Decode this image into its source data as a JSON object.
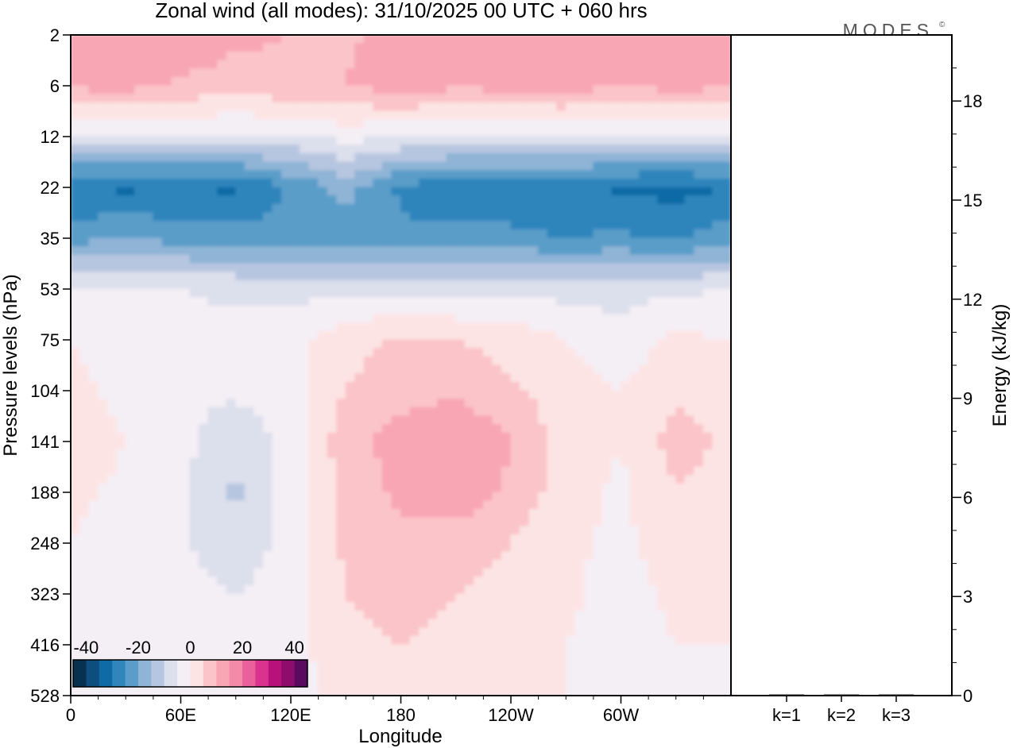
{
  "chart_data": [
    {
      "type": "heatmap",
      "title": "Zonal wind (all modes):  31/10/2025  00 UTC  + 060 hrs",
      "watermark": "MODES",
      "watermark_mark": "©",
      "xlabel": "Longitude",
      "ylabel": "Pressure levels (hPa)",
      "x_ticks": [
        "0",
        "60E",
        "120E",
        "180",
        "120W",
        "60W"
      ],
      "x_tick_lon": [
        0,
        60,
        120,
        180,
        240,
        300
      ],
      "xlim": [
        0,
        360
      ],
      "y_ticks": [
        "2",
        "6",
        "12",
        "22",
        "35",
        "53",
        "75",
        "104",
        "141",
        "188",
        "248",
        "323",
        "416",
        "528"
      ],
      "colorbar": {
        "tick_labels": [
          "-40",
          "-20",
          "0",
          "20",
          "40"
        ],
        "tick_values": [
          -40,
          -20,
          0,
          20,
          40
        ],
        "range": [
          -45,
          45
        ],
        "colors": [
          "#08304f",
          "#0c4f7e",
          "#0f6aa6",
          "#2f85bc",
          "#5a9dc9",
          "#8fb4d6",
          "#b7c6e0",
          "#dcdfec",
          "#f4eef5",
          "#fde4e4",
          "#fbc4c8",
          "#f8a6b4",
          "#f28aa8",
          "#e9609c",
          "#d9338f",
          "#b8127a",
          "#8d0c6c",
          "#5a0b5f"
        ]
      },
      "level_rows": [
        {
          "level": "2",
          "lon": [
            0,
            30,
            60,
            90,
            120,
            150,
            180,
            210,
            240,
            270,
            300,
            330,
            360
          ],
          "u": [
            12,
            15,
            14,
            11,
            10,
            9,
            12,
            10,
            13,
            12,
            11,
            14,
            12
          ]
        },
        {
          "level": "6",
          "lon": [
            0,
            30,
            60,
            90,
            120,
            150,
            180,
            210,
            240,
            270,
            300,
            330,
            360
          ],
          "u": [
            11,
            12,
            9,
            8,
            9,
            10,
            13,
            11,
            12,
            13,
            10,
            12,
            11
          ]
        },
        {
          "level": "12",
          "lon": [
            0,
            30,
            60,
            90,
            120,
            150,
            180,
            210,
            240,
            270,
            300,
            330,
            360
          ],
          "u": [
            -6,
            -5,
            -6,
            -6,
            -6,
            -3,
            -5,
            -6,
            -6,
            -6,
            -6,
            -6,
            -6
          ]
        },
        {
          "level": "22",
          "lon": [
            0,
            30,
            60,
            90,
            120,
            150,
            180,
            210,
            240,
            270,
            300,
            330,
            360
          ],
          "u": [
            -30,
            -31,
            -30,
            -31,
            -24,
            -18,
            -26,
            -28,
            -28,
            -29,
            -31,
            -32,
            -30
          ]
        },
        {
          "level": "35",
          "lon": [
            0,
            30,
            60,
            90,
            120,
            150,
            180,
            210,
            240,
            270,
            300,
            330,
            360
          ],
          "u": [
            -22,
            -20,
            -22,
            -22,
            -24,
            -22,
            -24,
            -24,
            -24,
            -25,
            -24,
            -26,
            -22
          ]
        },
        {
          "level": "53",
          "lon": [
            0,
            30,
            60,
            90,
            120,
            150,
            180,
            210,
            240,
            270,
            300,
            330,
            360
          ],
          "u": [
            -5,
            -5,
            -5,
            -6,
            -7,
            -6,
            -7,
            -7,
            -6,
            -7,
            -7,
            -6,
            -5
          ]
        },
        {
          "level": "75",
          "lon": [
            0,
            30,
            60,
            90,
            120,
            150,
            180,
            210,
            240,
            270,
            300,
            330,
            360
          ],
          "u": [
            0,
            -3,
            -4,
            -3,
            -2,
            3,
            6,
            5,
            3,
            0,
            -3,
            1,
            0
          ]
        },
        {
          "level": "104",
          "lon": [
            0,
            30,
            60,
            90,
            120,
            150,
            180,
            210,
            240,
            270,
            300,
            330,
            360
          ],
          "u": [
            2,
            -2,
            -4,
            -4,
            -2,
            5,
            8,
            9,
            6,
            2,
            0,
            4,
            3
          ]
        },
        {
          "level": "141",
          "lon": [
            0,
            30,
            60,
            90,
            120,
            150,
            180,
            210,
            240,
            270,
            300,
            330,
            360
          ],
          "u": [
            3,
            0,
            -3,
            -9,
            -3,
            8,
            12,
            15,
            10,
            3,
            0,
            7,
            4
          ]
        },
        {
          "level": "188",
          "lon": [
            0,
            30,
            60,
            90,
            120,
            150,
            180,
            210,
            240,
            270,
            300,
            330,
            360
          ],
          "u": [
            1,
            -1,
            -4,
            -11,
            -3,
            7,
            11,
            14,
            9,
            2,
            -1,
            5,
            3
          ]
        },
        {
          "level": "248",
          "lon": [
            0,
            30,
            60,
            90,
            120,
            150,
            180,
            210,
            240,
            270,
            300,
            330,
            360
          ],
          "u": [
            0,
            -2,
            -4,
            -9,
            -3,
            6,
            9,
            7,
            5,
            1,
            -1,
            2,
            1
          ]
        },
        {
          "level": "323",
          "lon": [
            0,
            30,
            60,
            90,
            120,
            150,
            180,
            210,
            240,
            270,
            300,
            330,
            360
          ],
          "u": [
            0,
            -2,
            -3,
            -5,
            -2,
            5,
            8,
            5,
            3,
            1,
            -2,
            1,
            0
          ]
        },
        {
          "level": "416",
          "lon": [
            0,
            30,
            60,
            90,
            120,
            150,
            180,
            210,
            240,
            270,
            300,
            330,
            360
          ],
          "u": [
            0,
            -1,
            -2,
            -3,
            -2,
            3,
            5,
            3,
            2,
            0,
            -2,
            0,
            0
          ]
        },
        {
          "level": "528",
          "lon": [
            0,
            30,
            60,
            90,
            120,
            150,
            180,
            210,
            240,
            270,
            300,
            330,
            360
          ],
          "u": [
            0,
            -1,
            -1,
            -2,
            -1,
            1,
            3,
            1,
            1,
            0,
            -1,
            -1,
            0
          ]
        }
      ]
    },
    {
      "type": "bar",
      "ylabel": "Energy (kJ/kg)",
      "ylim": [
        0,
        20
      ],
      "y_ticks": [
        "0",
        "3",
        "6",
        "9",
        "12",
        "15",
        "18"
      ],
      "y_tick_values": [
        0,
        3,
        6,
        9,
        12,
        15,
        18
      ],
      "categories": [
        "k=1",
        "k=2",
        "k=3"
      ],
      "values": [
        0.03,
        0.02,
        0.01
      ]
    }
  ]
}
